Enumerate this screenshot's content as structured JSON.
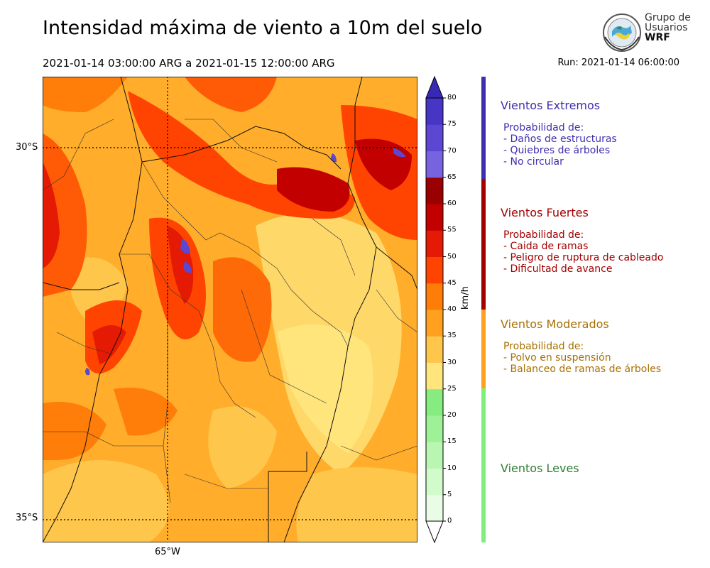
{
  "header": {
    "title": "Intensidad máxima de viento a 10m del suelo",
    "period": "2021-01-14 03:00:00 ARG  a  2021-01-15 12:00:00 ARG",
    "run": "Run: 2021-01-14 06:00:00"
  },
  "logo": {
    "line1": "Grupo de",
    "line2": "Usuarios",
    "line3": "WRF"
  },
  "map": {
    "lat_labels": [
      "30°S",
      "35°S"
    ],
    "lon_labels": [
      "65°W"
    ]
  },
  "colorbar": {
    "unit": "km/h",
    "ticks": [
      "0",
      "5",
      "10",
      "15",
      "20",
      "25",
      "30",
      "35",
      "40",
      "45",
      "50",
      "55",
      "60",
      "65",
      "70",
      "75",
      "80"
    ],
    "colors": [
      "#e9fde6",
      "#d2fbcc",
      "#b9f6b1",
      "#9ff198",
      "#86ec82",
      "#fee57c",
      "#ffc64c",
      "#ffa11e",
      "#fe7d09",
      "#ff4401",
      "#e51a04",
      "#c20000",
      "#9b0000",
      "#7762e0",
      "#5b47d2",
      "#4735c6",
      "#3728b5"
    ]
  },
  "categories": [
    {
      "title": "Vientos Extremos",
      "color": "#3f2fae",
      "lines": [
        "Probabilidad de:",
        "- Daños de estructuras",
        "- Quiebres de árboles",
        "- No circular"
      ]
    },
    {
      "title": "Vientos Fuertes",
      "color": "#a30000",
      "lines": [
        "Probabilidad de:",
        "- Caida de ramas",
        "- Peligro de ruptura de cableado",
        "- Dificultad de avance"
      ]
    },
    {
      "title": "Vientos Moderados",
      "color": "#a87000",
      "lines": [
        "Probabilidad de:",
        "- Polvo en suspensión",
        "- Balanceo de ramas de árboles"
      ]
    },
    {
      "title": "Vientos Leves",
      "color": "#2e7d32",
      "lines": []
    }
  ]
}
